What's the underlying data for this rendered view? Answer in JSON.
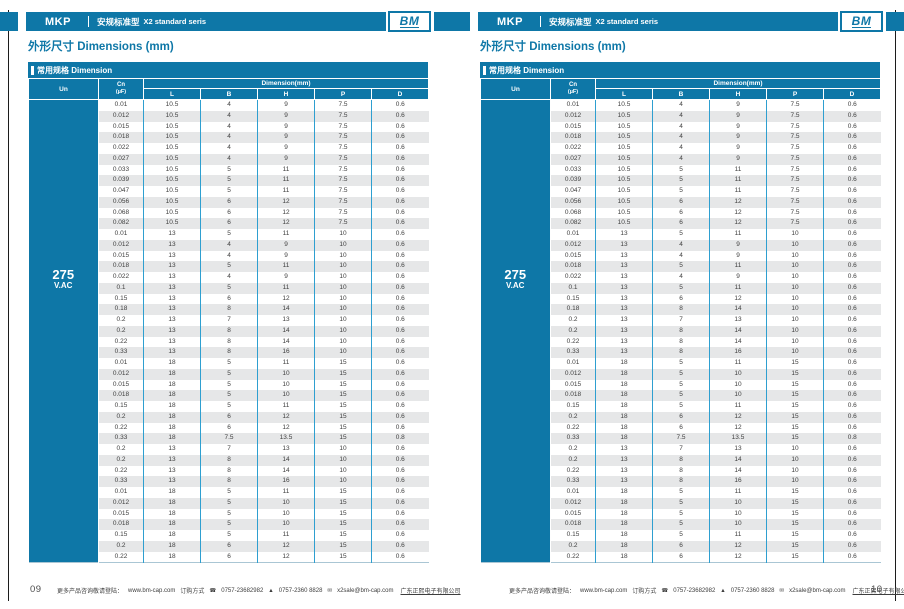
{
  "page_numbers": [
    "09",
    "10"
  ],
  "header": {
    "series_code": "MKP",
    "series_name_cn": "安规标准型",
    "series_name_en": "X2 standard seris",
    "logo_text": "BM"
  },
  "section_title": "外形尺寸 Dimensions (mm)",
  "table": {
    "title": "常用规格 Dimension",
    "un_header": "Un",
    "cn_header": "Cn",
    "cn_unit": "(µF)",
    "dimension_span_header": "Dimension(mm)",
    "dim_columns": [
      "L",
      "B",
      "H",
      "P",
      "D"
    ],
    "voltage": "275",
    "voltage_unit": "V.AC",
    "rows": [
      [
        "0.01",
        "10.5",
        "4",
        "9",
        "7.5",
        "0.6"
      ],
      [
        "0.012",
        "10.5",
        "4",
        "9",
        "7.5",
        "0.6"
      ],
      [
        "0.015",
        "10.5",
        "4",
        "9",
        "7.5",
        "0.6"
      ],
      [
        "0.018",
        "10.5",
        "4",
        "9",
        "7.5",
        "0.6"
      ],
      [
        "0.022",
        "10.5",
        "4",
        "9",
        "7.5",
        "0.6"
      ],
      [
        "0.027",
        "10.5",
        "4",
        "9",
        "7.5",
        "0.6"
      ],
      [
        "0.033",
        "10.5",
        "5",
        "11",
        "7.5",
        "0.6"
      ],
      [
        "0.039",
        "10.5",
        "5",
        "11",
        "7.5",
        "0.6"
      ],
      [
        "0.047",
        "10.5",
        "5",
        "11",
        "7.5",
        "0.6"
      ],
      [
        "0.056",
        "10.5",
        "6",
        "12",
        "7.5",
        "0.6"
      ],
      [
        "0.068",
        "10.5",
        "6",
        "12",
        "7.5",
        "0.6"
      ],
      [
        "0.082",
        "10.5",
        "6",
        "12",
        "7.5",
        "0.6"
      ],
      [
        "0.01",
        "13",
        "5",
        "11",
        "10",
        "0.6"
      ],
      [
        "0.012",
        "13",
        "4",
        "9",
        "10",
        "0.6"
      ],
      [
        "0.015",
        "13",
        "4",
        "9",
        "10",
        "0.6"
      ],
      [
        "0.018",
        "13",
        "5",
        "11",
        "10",
        "0.6"
      ],
      [
        "0.022",
        "13",
        "4",
        "9",
        "10",
        "0.6"
      ],
      [
        "0.1",
        "13",
        "5",
        "11",
        "10",
        "0.6"
      ],
      [
        "0.15",
        "13",
        "6",
        "12",
        "10",
        "0.6"
      ],
      [
        "0.18",
        "13",
        "8",
        "14",
        "10",
        "0.6"
      ],
      [
        "0.2",
        "13",
        "7",
        "13",
        "10",
        "0.6"
      ],
      [
        "0.2",
        "13",
        "8",
        "14",
        "10",
        "0.6"
      ],
      [
        "0.22",
        "13",
        "8",
        "14",
        "10",
        "0.6"
      ],
      [
        "0.33",
        "13",
        "8",
        "16",
        "10",
        "0.6"
      ],
      [
        "0.01",
        "18",
        "5",
        "11",
        "15",
        "0.6"
      ],
      [
        "0.012",
        "18",
        "5",
        "10",
        "15",
        "0.6"
      ],
      [
        "0.015",
        "18",
        "5",
        "10",
        "15",
        "0.6"
      ],
      [
        "0.018",
        "18",
        "5",
        "10",
        "15",
        "0.6"
      ],
      [
        "0.15",
        "18",
        "5",
        "11",
        "15",
        "0.6"
      ],
      [
        "0.2",
        "18",
        "6",
        "12",
        "15",
        "0.6"
      ],
      [
        "0.22",
        "18",
        "6",
        "12",
        "15",
        "0.6"
      ],
      [
        "0.33",
        "18",
        "7.5",
        "13.5",
        "15",
        "0.8"
      ],
      [
        "0.2",
        "13",
        "7",
        "13",
        "10",
        "0.6"
      ],
      [
        "0.2",
        "13",
        "8",
        "14",
        "10",
        "0.6"
      ],
      [
        "0.22",
        "13",
        "8",
        "14",
        "10",
        "0.6"
      ],
      [
        "0.33",
        "13",
        "8",
        "16",
        "10",
        "0.6"
      ],
      [
        "0.01",
        "18",
        "5",
        "11",
        "15",
        "0.6"
      ],
      [
        "0.012",
        "18",
        "5",
        "10",
        "15",
        "0.6"
      ],
      [
        "0.015",
        "18",
        "5",
        "10",
        "15",
        "0.6"
      ],
      [
        "0.018",
        "18",
        "5",
        "10",
        "15",
        "0.6"
      ],
      [
        "0.15",
        "18",
        "5",
        "11",
        "15",
        "0.6"
      ],
      [
        "0.2",
        "18",
        "6",
        "12",
        "15",
        "0.6"
      ],
      [
        "0.22",
        "18",
        "6",
        "12",
        "15",
        "0.6"
      ]
    ]
  },
  "footer": {
    "visit_label": "更多产品咨询敬请登陆：",
    "website": "www.bm-cap.com",
    "order_label": "订购方式",
    "icons": {
      "phone": "☎",
      "fax": "▲",
      "email": "✉"
    },
    "phone": "0757-23682982",
    "fax": "0757-2360 8828",
    "email": "x2sale@bm-cap.com",
    "company": "广东正熙电子有限公司"
  },
  "colors": {
    "primary_blue": "#0e77a7",
    "grid_blue": "#2e9fd0",
    "stripe_gray": "#e6e7e8",
    "edge_rule": "#1c1c1c"
  }
}
